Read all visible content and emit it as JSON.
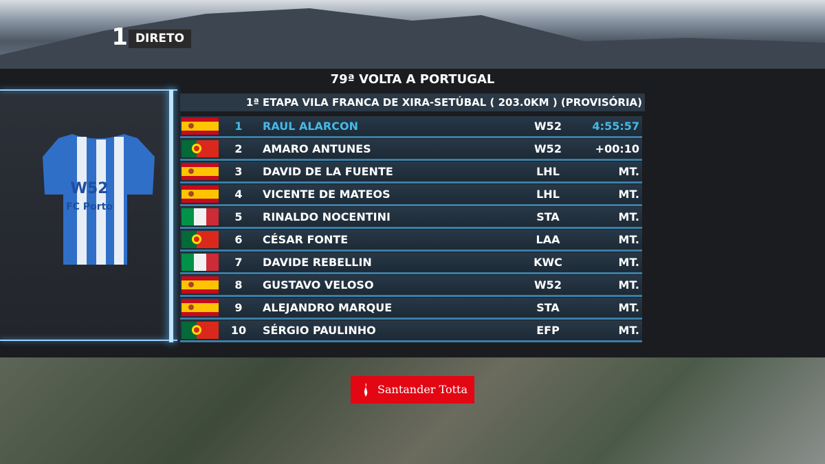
{
  "header": {
    "channel": "1",
    "live": "DIRETO"
  },
  "title": "79ª VOLTA A PORTUGAL",
  "subtitle": "1ª ETAPA VILA FRANCA DE XIRA-SETÚBAL ( 203.0KM ) (PROVISÓRIA)",
  "jersey": {
    "sponsor": "W52",
    "club": "FC Porto"
  },
  "table": {
    "rows": [
      [
        "1",
        "RAUL ALARCON",
        "W52",
        "4:55:57"
      ],
      [
        "2",
        "AMARO ANTUNES",
        "W52",
        "+00:10"
      ],
      [
        "3",
        "DAVID DE LA FUENTE",
        "LHL",
        "MT."
      ],
      [
        "4",
        "VICENTE DE MATEOS",
        "LHL",
        "MT."
      ],
      [
        "5",
        "RINALDO NOCENTINI",
        "STA",
        "MT."
      ],
      [
        "6",
        "CÉSAR FONTE",
        "LAA",
        "MT."
      ],
      [
        "7",
        "DAVIDE REBELLIN",
        "KWC",
        "MT."
      ],
      [
        "8",
        "GUSTAVO VELOSO",
        "W52",
        "MT."
      ],
      [
        "9",
        "ALEJANDRO MARQUE",
        "STA",
        "MT."
      ],
      [
        "10",
        "SÉRGIO PAULINHO",
        "EFP",
        "MT."
      ]
    ]
  },
  "sponsor": "Santander Totta"
}
